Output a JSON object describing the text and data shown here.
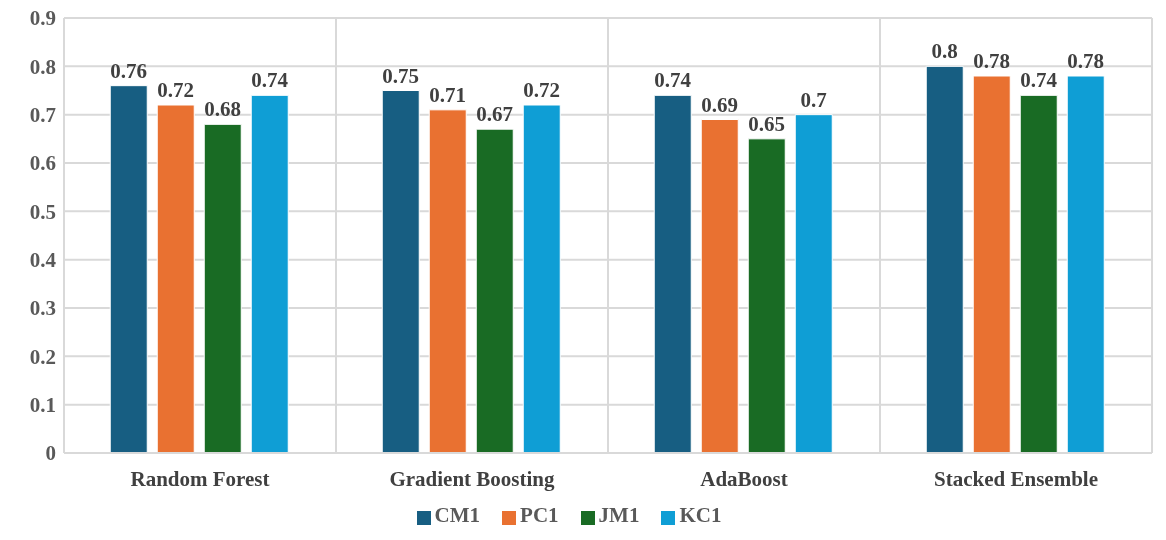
{
  "chart_data": {
    "type": "bar",
    "categories": [
      "Random Forest",
      "Gradient Boosting",
      "AdaBoost",
      "Stacked Ensemble"
    ],
    "series": [
      {
        "name": "CM1",
        "color": "#175e82",
        "values": [
          0.76,
          0.75,
          0.74,
          0.8
        ]
      },
      {
        "name": "PC1",
        "color": "#e97131",
        "values": [
          0.72,
          0.71,
          0.69,
          0.78
        ]
      },
      {
        "name": "JM1",
        "color": "#196b24",
        "values": [
          0.68,
          0.67,
          0.65,
          0.74
        ]
      },
      {
        "name": "KC1",
        "color": "#0f9ed5",
        "values": [
          0.74,
          0.72,
          0.7,
          0.78
        ]
      }
    ],
    "ylim": [
      0,
      0.9
    ],
    "yticks": [
      0,
      0.1,
      0.2,
      0.3,
      0.4,
      0.5,
      0.6,
      0.7,
      0.8,
      0.9
    ],
    "grid": true,
    "legend": "bottom",
    "data_labels": true
  }
}
